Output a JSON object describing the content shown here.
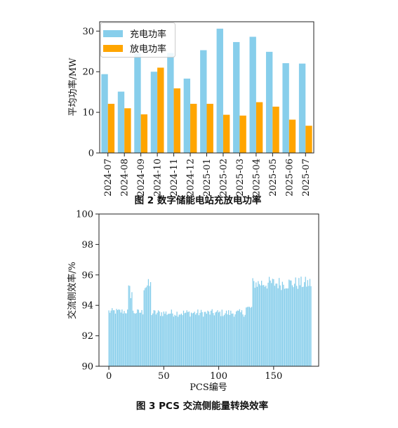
{
  "charts": [
    {
      "type": "bar",
      "categories": [
        "2024-07",
        "2024-08",
        "2024-09",
        "2024-10",
        "2024-11",
        "2024-12",
        "2025-01",
        "2025-02",
        "2025-03",
        "2025-04",
        "2025-05",
        "2025-06",
        "2025-07"
      ],
      "series": [
        {
          "name": "充电功率",
          "color": "#87CEEB",
          "values": [
            19.4,
            15.1,
            24.5,
            20.0,
            24.6,
            18.3,
            25.3,
            30.6,
            27.3,
            28.6,
            24.9,
            22.1,
            22.0
          ]
        },
        {
          "name": "放电功率",
          "color": "#FFA500",
          "values": [
            12.1,
            11.0,
            9.5,
            21.0,
            15.9,
            12.1,
            12.1,
            9.4,
            9.2,
            12.5,
            11.4,
            8.2,
            6.7
          ]
        }
      ],
      "ylabel": "平均功率/MW",
      "xlabel": "",
      "ylim": [
        0,
        32.3
      ],
      "yticks": [
        0,
        10,
        20,
        30
      ],
      "legend": "top-left",
      "grid": false
    },
    {
      "type": "bar",
      "ylabel": "交流侧效率/%",
      "xlabel": "PCS编号",
      "xlim": [
        -9,
        191
      ],
      "ylim": [
        90,
        100
      ],
      "xticks": [
        0,
        50,
        100,
        150
      ],
      "yticks": [
        90,
        92,
        94,
        96,
        98,
        100
      ],
      "grid": false,
      "color": "#87CEEB",
      "segments": [
        {
          "from": 0,
          "to": 17,
          "base": 93.6,
          "amp": 0.22
        },
        {
          "from": 18,
          "to": 21,
          "base": 94.9,
          "amp": 0.55
        },
        {
          "from": 22,
          "to": 31,
          "base": 93.55,
          "amp": 0.22
        },
        {
          "from": 32,
          "to": 38,
          "base": 95.3,
          "amp": 0.45
        },
        {
          "from": 39,
          "to": 124,
          "base": 93.5,
          "amp": 0.25
        },
        {
          "from": 125,
          "to": 130,
          "base": 93.85,
          "amp": 0.15
        },
        {
          "from": 131,
          "to": 138,
          "base": 95.45,
          "amp": 0.4
        },
        {
          "from": 139,
          "to": 184,
          "base": 95.45,
          "amp": 0.45
        }
      ]
    }
  ],
  "captions": {
    "fig2": "图 2  数字储能电站充放电功率",
    "fig3": "图 3    PCS 交流侧能量转换效率"
  }
}
